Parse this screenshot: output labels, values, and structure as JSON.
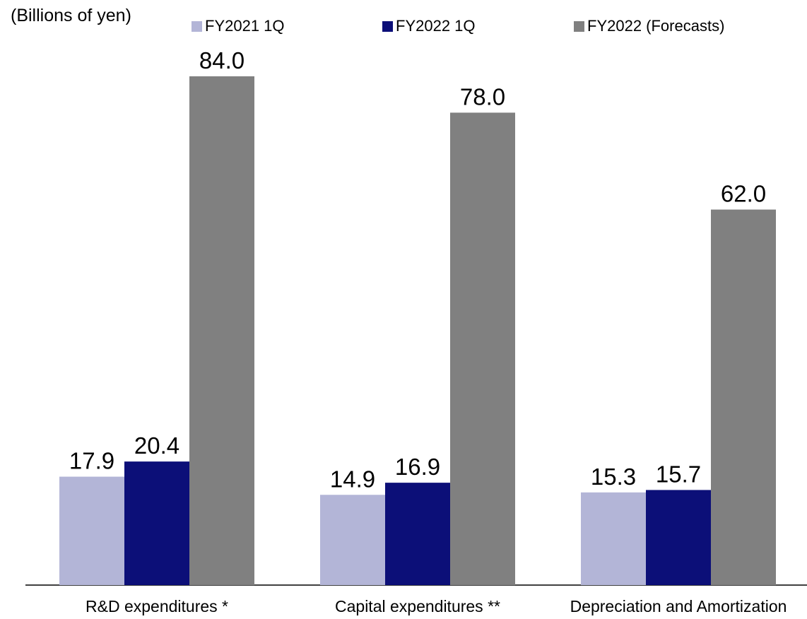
{
  "chart_data": {
    "type": "bar",
    "unit_label": "(Billions of yen)",
    "categories": [
      "R&D expenditures *",
      "Capital expenditures **",
      "Depreciation and Amortization"
    ],
    "series": [
      {
        "name": "FY2021 1Q",
        "color": "#b3b5d7",
        "values": [
          17.9,
          14.9,
          15.3
        ],
        "labels": [
          "17.9",
          "14.9",
          "15.3"
        ]
      },
      {
        "name": "FY2022 1Q",
        "color": "#0c0f78",
        "values": [
          20.4,
          16.9,
          15.7
        ],
        "labels": [
          "20.4",
          "16.9",
          "15.7"
        ]
      },
      {
        "name": "FY2022 (Forecasts)",
        "color": "#808080",
        "values": [
          84.0,
          78.0,
          62.0
        ],
        "labels": [
          "84.0",
          "78.0",
          "62.0"
        ]
      }
    ],
    "ylim": [
      0,
      84.0
    ],
    "grid": false,
    "legend_position": "top"
  }
}
